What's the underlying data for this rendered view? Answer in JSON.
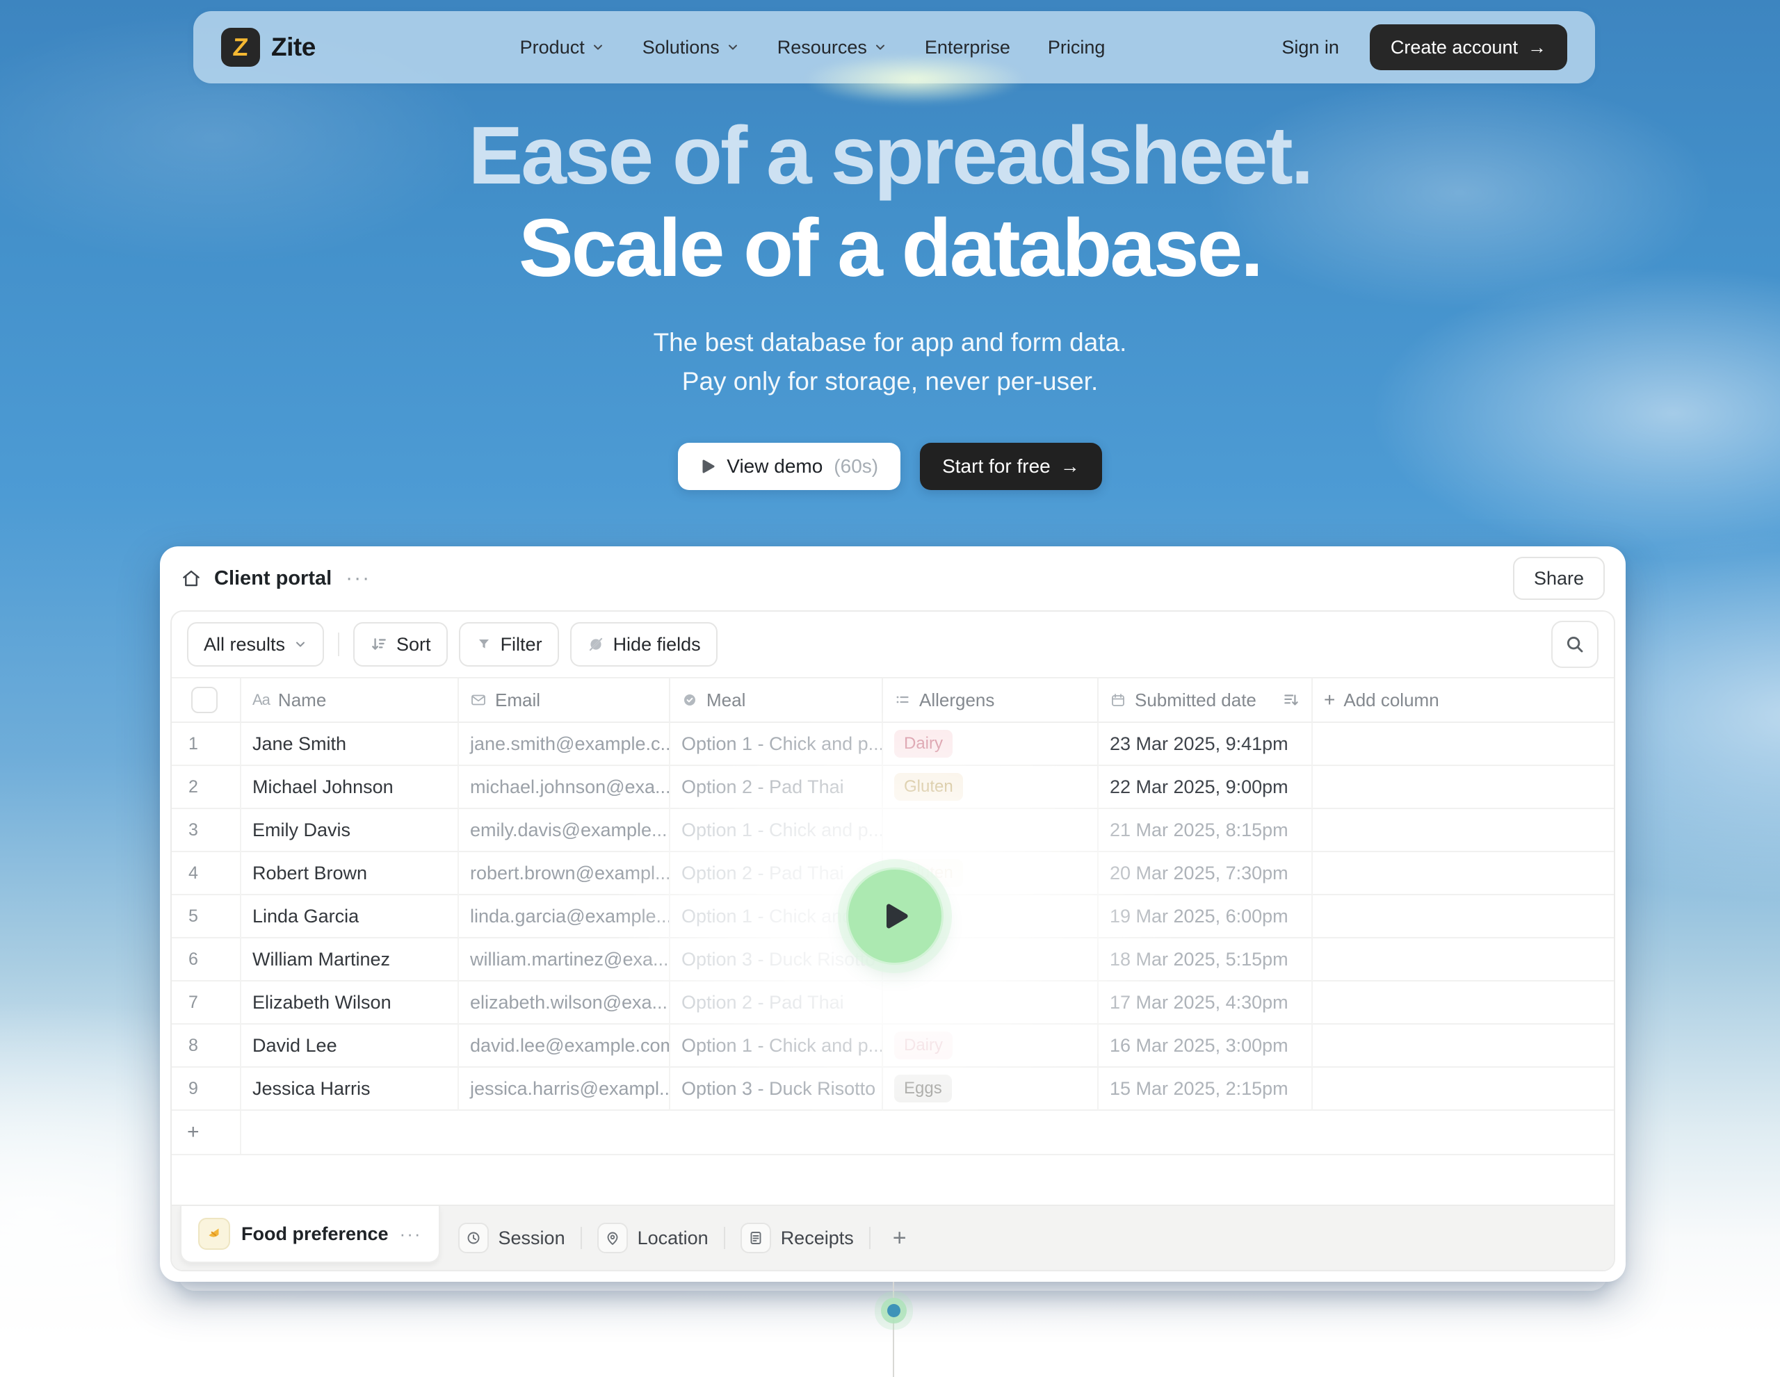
{
  "nav": {
    "brand": "Zite",
    "logo_letter": "Z",
    "links": [
      {
        "label": "Product",
        "chevron": true
      },
      {
        "label": "Solutions",
        "chevron": true
      },
      {
        "label": "Resources",
        "chevron": true
      },
      {
        "label": "Enterprise",
        "chevron": false
      },
      {
        "label": "Pricing",
        "chevron": false
      }
    ],
    "sign_in": "Sign in",
    "create_account": "Create account",
    "create_account_arrow": "→"
  },
  "hero": {
    "title_line1": "Ease of a spreadsheet.",
    "title_line2": "Scale of a database.",
    "subtitle_line1": "The best database for app and form data.",
    "subtitle_line2": "Pay only for storage, never per-user.",
    "view_demo_label": "View demo",
    "view_demo_duration": "(60s)",
    "start_free_label": "Start for free",
    "start_free_arrow": "→"
  },
  "app": {
    "title": "Client portal",
    "title_menu_dots": "···",
    "share_label": "Share",
    "toolbar": {
      "view_selector": "All results",
      "sort": "Sort",
      "filter": "Filter",
      "hide_fields": "Hide fields"
    }
  },
  "table": {
    "columns": [
      {
        "glyph": "Aa",
        "label": "Name"
      },
      {
        "label": "Email"
      },
      {
        "label": "Meal"
      },
      {
        "label": "Allergens"
      },
      {
        "label": "Submitted date"
      },
      {
        "label": "Add column",
        "plus": "+"
      }
    ],
    "rows": [
      {
        "num": "1",
        "name": "Jane Smith",
        "email": "jane.smith@example.c...",
        "meal": "Option 1 - Chick and p...",
        "allergen": "Dairy",
        "date": "23 Mar 2025, 9:41pm"
      },
      {
        "num": "2",
        "name": "Michael Johnson",
        "email": "michael.johnson@exa...",
        "meal": "Option 2 - Pad Thai",
        "allergen": "Gluten",
        "date": "22 Mar 2025, 9:00pm"
      },
      {
        "num": "3",
        "name": "Emily Davis",
        "email": "emily.davis@example....",
        "meal": "Option 1 - Chick and p...",
        "allergen": "",
        "date": "21 Mar 2025, 8:15pm"
      },
      {
        "num": "4",
        "name": "Robert Brown",
        "email": "robert.brown@exampl...",
        "meal": "Option 2 - Pad Thai",
        "allergen": "Gluten",
        "date": "20 Mar 2025, 7:30pm"
      },
      {
        "num": "5",
        "name": "Linda Garcia",
        "email": "linda.garcia@example....",
        "meal": "Option 1 - Chick and p...",
        "allergen": "",
        "date": "19 Mar 2025, 6:00pm"
      },
      {
        "num": "6",
        "name": "William Martinez",
        "email": "william.martinez@exa...",
        "meal": "Option 3 - Duck Risotto",
        "allergen": "",
        "date": "18 Mar 2025, 5:15pm"
      },
      {
        "num": "7",
        "name": "Elizabeth Wilson",
        "email": "elizabeth.wilson@exa...",
        "meal": "Option 2 - Pad Thai",
        "allergen": "",
        "date": "17 Mar 2025, 4:30pm"
      },
      {
        "num": "8",
        "name": "David Lee",
        "email": "david.lee@example.com",
        "meal": "Option 1 - Chick and p...",
        "allergen": "Dairy",
        "date": "16 Mar 2025, 3:00pm"
      },
      {
        "num": "9",
        "name": "Jessica Harris",
        "email": "jessica.harris@exampl...",
        "meal": "Option 3 - Duck Risotto",
        "allergen": "Eggs",
        "date": "15 Mar 2025, 2:15pm"
      }
    ],
    "add_row_label": "+"
  },
  "tabs": {
    "active": {
      "label": "Food preference",
      "menu_dots": "···"
    },
    "inactive": [
      {
        "label": "Session"
      },
      {
        "label": "Location"
      },
      {
        "label": "Receipts"
      }
    ],
    "add_tab_label": "+"
  },
  "colors": {
    "brand_yellow": "#F5B832",
    "sky_top": "#3D85C0",
    "nav_pill": "#B7D6ED",
    "play_button_green": "#ACE9B1",
    "badge_dairy_bg": "#FBEAEC",
    "badge_dairy_text": "#D6919F",
    "badge_gluten_bg": "#F8EFE0",
    "badge_gluten_text": "#BFA565",
    "badge_eggs_bg": "#F1F1F0",
    "badge_eggs_text": "#9A9A96",
    "timeline_dot": "#3E93B8"
  }
}
